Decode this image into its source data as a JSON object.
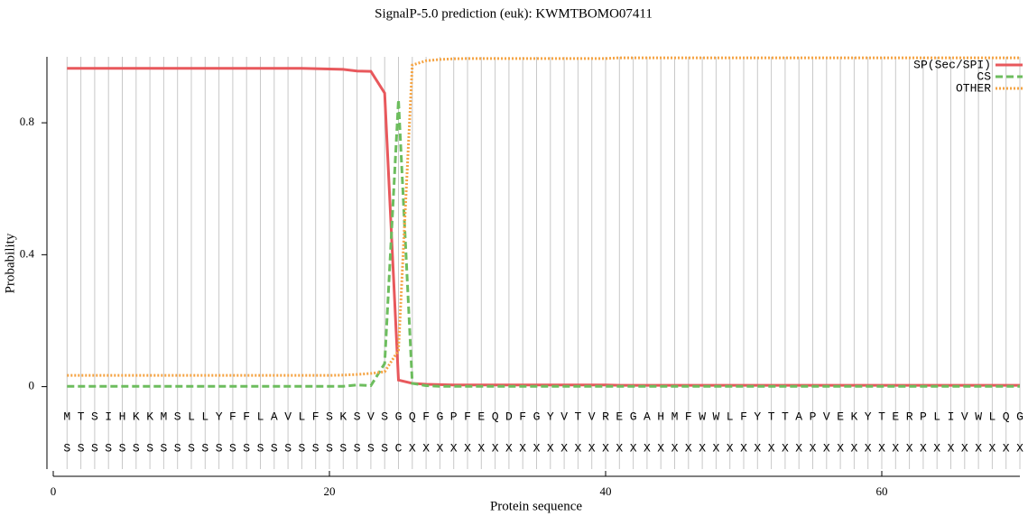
{
  "chart_data": {
    "type": "line",
    "title": "SignalP-5.0 prediction (euk):  KWMTBOMO07411",
    "xlabel": "Protein sequence",
    "ylabel": "Probability",
    "xlim": [
      0,
      70
    ],
    "ylim": [
      -0.25,
      1.0
    ],
    "xticks": [
      0,
      20,
      40,
      60
    ],
    "yticks": [
      0,
      0.4,
      0.8
    ],
    "grid": true,
    "legend": "upper right",
    "x": [
      1,
      2,
      3,
      4,
      5,
      6,
      7,
      8,
      9,
      10,
      11,
      12,
      13,
      14,
      15,
      16,
      17,
      18,
      19,
      20,
      21,
      22,
      23,
      24,
      25,
      26,
      27,
      28,
      29,
      30,
      31,
      32,
      33,
      34,
      35,
      36,
      37,
      38,
      39,
      40,
      41,
      42,
      43,
      44,
      45,
      46,
      47,
      48,
      49,
      50,
      51,
      52,
      53,
      54,
      55,
      56,
      57,
      58,
      59,
      60,
      61,
      62,
      63,
      64,
      65,
      66,
      67,
      68,
      69,
      70
    ],
    "residues": [
      "M",
      "T",
      "S",
      "I",
      "H",
      "K",
      "K",
      "M",
      "S",
      "L",
      "L",
      "Y",
      "F",
      "F",
      "L",
      "A",
      "V",
      "L",
      "F",
      "S",
      "K",
      "S",
      "V",
      "S",
      "G",
      "Q",
      "F",
      "G",
      "P",
      "F",
      "E",
      "Q",
      "D",
      "F",
      "G",
      "Y",
      "V",
      "T",
      "V",
      "R",
      "E",
      "G",
      "A",
      "H",
      "M",
      "F",
      "W",
      "W",
      "L",
      "F",
      "Y",
      "T",
      "T",
      "A",
      "P",
      "V",
      "E",
      "K",
      "Y",
      "T",
      "E",
      "R",
      "P",
      "L",
      "I",
      "V",
      "W",
      "L",
      "Q",
      "G"
    ],
    "annotations": [
      "S",
      "S",
      "S",
      "S",
      "S",
      "S",
      "S",
      "S",
      "S",
      "S",
      "S",
      "S",
      "S",
      "S",
      "S",
      "S",
      "S",
      "S",
      "S",
      "S",
      "S",
      "S",
      "S",
      "S",
      "C",
      "X",
      "X",
      "X",
      "X",
      "X",
      "X",
      "X",
      "X",
      "X",
      "X",
      "X",
      "X",
      "X",
      "X",
      "X",
      "X",
      "X",
      "X",
      "X",
      "X",
      "X",
      "X",
      "X",
      "X",
      "X",
      "X",
      "X",
      "X",
      "X",
      "X",
      "X",
      "X",
      "X",
      "X",
      "X",
      "X",
      "X",
      "X",
      "X",
      "X",
      "X",
      "X",
      "X",
      "X",
      "X"
    ],
    "series": [
      {
        "name": "SP(Sec/SPI)",
        "color": "#e8585c",
        "style": "solid",
        "values": [
          0.965,
          0.965,
          0.965,
          0.965,
          0.965,
          0.965,
          0.965,
          0.965,
          0.965,
          0.965,
          0.965,
          0.965,
          0.965,
          0.965,
          0.965,
          0.965,
          0.965,
          0.965,
          0.964,
          0.963,
          0.962,
          0.957,
          0.956,
          0.89,
          0.02,
          0.01,
          0.007,
          0.006,
          0.005,
          0.005,
          0.005,
          0.005,
          0.005,
          0.005,
          0.005,
          0.005,
          0.005,
          0.005,
          0.005,
          0.005,
          0.004,
          0.004,
          0.004,
          0.004,
          0.004,
          0.004,
          0.004,
          0.004,
          0.004,
          0.004,
          0.004,
          0.004,
          0.004,
          0.004,
          0.004,
          0.004,
          0.004,
          0.004,
          0.004,
          0.004,
          0.004,
          0.004,
          0.004,
          0.004,
          0.004,
          0.004,
          0.004,
          0.004,
          0.004,
          0.004
        ]
      },
      {
        "name": "CS",
        "color": "#6dbd5e",
        "style": "dashed",
        "values": [
          0.001,
          0.001,
          0.001,
          0.001,
          0.001,
          0.001,
          0.001,
          0.001,
          0.001,
          0.001,
          0.001,
          0.001,
          0.001,
          0.001,
          0.001,
          0.001,
          0.001,
          0.001,
          0.001,
          0.001,
          0.001,
          0.005,
          0.003,
          0.07,
          0.87,
          0.01,
          0.003,
          0.001,
          0.001,
          0.001,
          0.001,
          0.001,
          0.001,
          0.001,
          0.001,
          0.001,
          0.001,
          0.001,
          0.001,
          0.001,
          0.001,
          0.001,
          0.001,
          0.001,
          0.001,
          0.001,
          0.001,
          0.001,
          0.001,
          0.001,
          0.001,
          0.001,
          0.001,
          0.001,
          0.001,
          0.001,
          0.001,
          0.001,
          0.001,
          0.001,
          0.001,
          0.001,
          0.001,
          0.001,
          0.001,
          0.001,
          0.001,
          0.001,
          0.001,
          0.001
        ]
      },
      {
        "name": "OTHER",
        "color": "#f5a444",
        "style": "dotted",
        "values": [
          0.034,
          0.034,
          0.034,
          0.034,
          0.034,
          0.034,
          0.034,
          0.034,
          0.034,
          0.034,
          0.034,
          0.034,
          0.034,
          0.034,
          0.034,
          0.034,
          0.034,
          0.034,
          0.034,
          0.034,
          0.035,
          0.037,
          0.04,
          0.045,
          0.11,
          0.975,
          0.988,
          0.992,
          0.994,
          0.995,
          0.995,
          0.995,
          0.995,
          0.995,
          0.995,
          0.995,
          0.995,
          0.995,
          0.995,
          0.995,
          0.997,
          0.997,
          0.997,
          0.997,
          0.997,
          0.997,
          0.997,
          0.997,
          0.997,
          0.997,
          0.997,
          0.997,
          0.997,
          0.997,
          0.997,
          0.997,
          0.997,
          0.997,
          0.997,
          0.997,
          0.997,
          0.997,
          0.997,
          0.997,
          0.997,
          0.997,
          0.997,
          0.997,
          0.997,
          0.997
        ]
      }
    ]
  }
}
